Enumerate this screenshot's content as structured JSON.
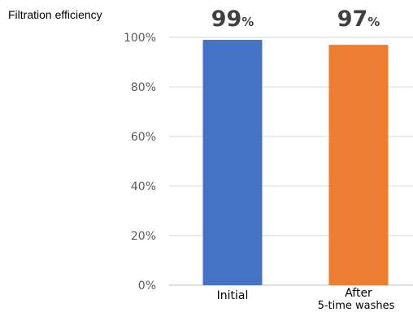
{
  "chart_data": {
    "type": "bar",
    "ylabel": "Filtration efficiency",
    "ylim": [
      0,
      100
    ],
    "y_ticks": [
      "0%",
      "20%",
      "40%",
      "60%",
      "80%",
      "100%"
    ],
    "grid": true,
    "categories": [
      {
        "label": "Initial",
        "sublabel": ""
      },
      {
        "label": "After",
        "sublabel": "5-time washes"
      }
    ],
    "values": [
      99,
      97
    ],
    "data_labels": [
      {
        "number": "99",
        "unit": "%"
      },
      {
        "number": "97",
        "unit": "%"
      }
    ],
    "colors": [
      "#4472C4",
      "#ED7D31"
    ]
  }
}
